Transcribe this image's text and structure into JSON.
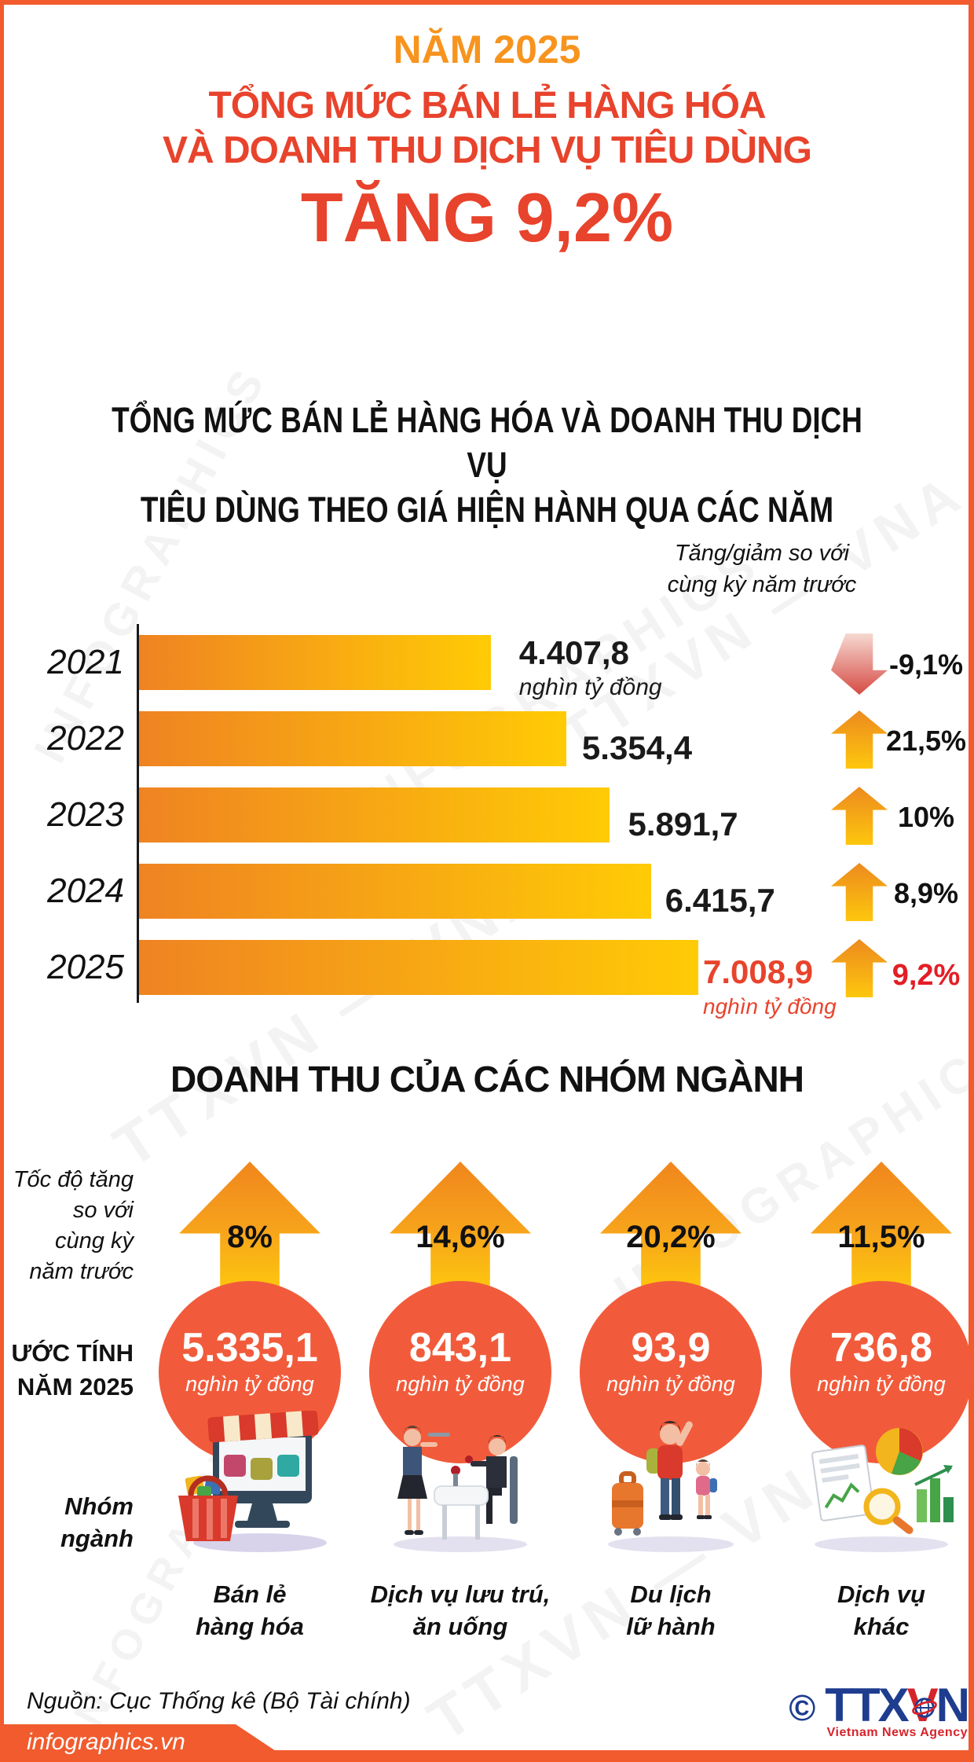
{
  "header": {
    "year_label": "NĂM 2025",
    "title_lines": [
      "TỔNG MỨC BÁN LẺ HÀNG HÓA",
      "VÀ DOANH THU DỊCH VỤ TIÊU DÙNG"
    ],
    "highlight": "TĂNG 9,2%"
  },
  "chart_data": [
    {
      "type": "bar",
      "orientation": "horizontal",
      "title_lines": [
        "TỔNG MỨC BÁN LẺ HÀNG HÓA VÀ DOANH THU DỊCH VỤ",
        "TIÊU DÙNG THEO GIÁ HIỆN HÀNH QUA CÁC NĂM"
      ],
      "legend_lines": [
        "Tăng/giảm so với",
        "cùng kỳ năm trước"
      ],
      "categories": [
        "2021",
        "2022",
        "2023",
        "2024",
        "2025"
      ],
      "values": [
        4407.8,
        5354.4,
        5891.7,
        6415.7,
        7008.9
      ],
      "value_labels": [
        "4.407,8",
        "5.354,4",
        "5.891,7",
        "6.415,7",
        "7.008,9"
      ],
      "unit": "nghìn tỷ đồng",
      "change_labels": [
        "-9,1%",
        "21,5%",
        "10%",
        "8,9%",
        "9,2%"
      ],
      "change_directions": [
        "down",
        "up",
        "up",
        "up",
        "up"
      ],
      "xmax": 7008.9,
      "grid": false
    },
    {
      "type": "pictogram",
      "title": "DOANH THU CỦA CÁC NHÓM NGÀNH",
      "categories": [
        "Bán lẻ hàng hóa",
        "Dịch vụ lưu trú, ăn uống",
        "Du lịch lữ hành",
        "Dịch vụ khác"
      ],
      "category_lines": [
        [
          "Bán lẻ",
          "hàng hóa"
        ],
        [
          "Dịch vụ lưu trú,",
          "ăn uống"
        ],
        [
          "Du lịch",
          "lữ hành"
        ],
        [
          "Dịch vụ",
          "khác"
        ]
      ],
      "values": [
        5335.1,
        843.1,
        93.9,
        736.8
      ],
      "value_labels": [
        "5.335,1",
        "843,1",
        "93,9",
        "736,8"
      ],
      "growth_labels": [
        "8%",
        "14,6%",
        "20,2%",
        "11,5%"
      ],
      "unit": "nghìn tỷ đồng",
      "icons": [
        "retail-storefront-icon",
        "dining-service-icon",
        "travel-tourism-icon",
        "other-services-icon"
      ]
    }
  ],
  "sectors": {
    "growth_note_lines": [
      "Tốc độ tăng",
      "so với",
      "cùng kỳ",
      "năm trước"
    ],
    "estimate_lines": [
      "ƯỚC TÍNH",
      "NĂM 2025"
    ],
    "group_lines": [
      "Nhóm",
      "ngành"
    ]
  },
  "watermarks": [
    "INFOGRAPHICS",
    "TTXVN — VNA"
  ],
  "footer": {
    "source": "Nguồn: Cục Thống kê (Bộ Tài chính)",
    "website": "infographics.vn",
    "copyright": "©",
    "logo_part1": "TTX",
    "logo_part2": "V",
    "logo_part3": "N",
    "logo_subtext": "Vietnam News Agency"
  },
  "colors": {
    "frame": "#F15B2E",
    "year_orange": "#F7941E",
    "title_red": "#E8432C",
    "strong_red": "#E31E26",
    "bar_start": "#EF8322",
    "bar_end": "#FFCB05",
    "arrow_start": "#ED8A1F",
    "arrow_end": "#FDC70D",
    "down_start": "#F6D9D1",
    "down_end": "#D54B44",
    "circle": "#F15B3B",
    "logo_blue": "#1E3D8F",
    "logo_red": "#D6232A"
  }
}
